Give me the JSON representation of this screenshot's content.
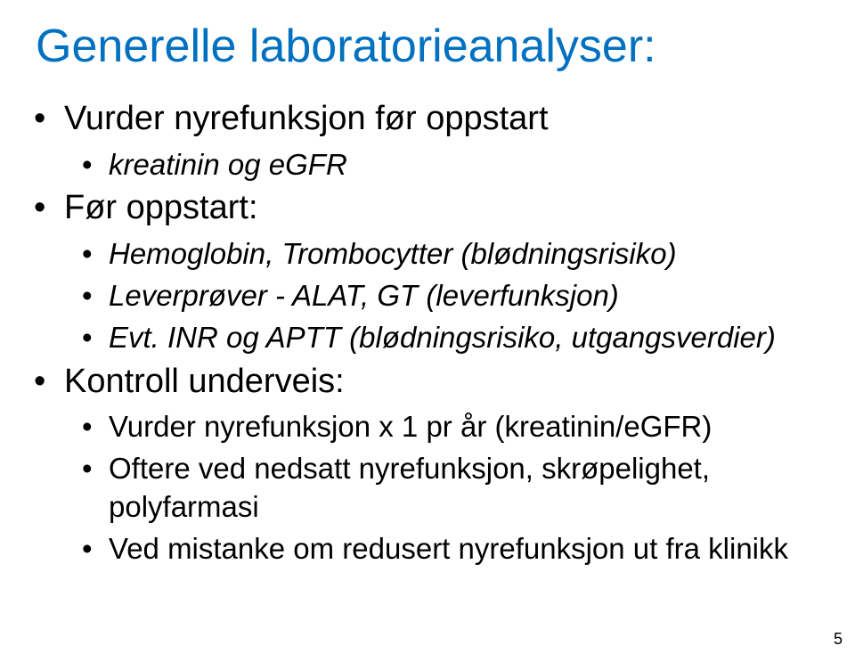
{
  "title": "Generelle laboratorieanalyser:",
  "title_color": "#0070c0",
  "bg_color": "#ffffff",
  "text_color": "#000000",
  "title_fontsize": 52,
  "level1_fontsize": 38,
  "level2_fontsize": 33,
  "items": {
    "l1a": "Vurder nyrefunksjon før oppstart",
    "l1a_sub": {
      "a": "kreatinin og eGFR"
    },
    "l1b": "Før oppstart:",
    "l1b_sub": {
      "a": "Hemoglobin, Trombocytter (blødningsrisiko)",
      "b": "Leverprøver - ALAT, GT (leverfunksjon)",
      "c": "Evt. INR og APTT (blødningsrisiko, utgangsverdier)"
    },
    "l1c": "Kontroll underveis:",
    "l1c_sub": {
      "a": "Vurder nyrefunksjon x 1 pr år (kreatinin/eGFR)",
      "b": "Oftere ved nedsatt nyrefunksjon, skrøpelighet, polyfarmasi",
      "c": "Ved mistanke om redusert nyrefunksjon ut fra klinikk"
    }
  },
  "page_number": "5"
}
